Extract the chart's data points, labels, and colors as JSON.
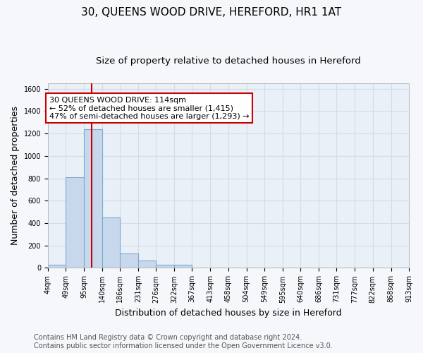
{
  "title": "30, QUEENS WOOD DRIVE, HEREFORD, HR1 1AT",
  "subtitle": "Size of property relative to detached houses in Hereford",
  "xlabel": "Distribution of detached houses by size in Hereford",
  "ylabel": "Number of detached properties",
  "bar_color": "#c8d8ec",
  "bar_edge_color": "#7aaad0",
  "bin_edges": [
    4,
    49,
    95,
    140,
    186,
    231,
    276,
    322,
    367,
    413,
    458,
    504,
    549,
    595,
    640,
    686,
    731,
    777,
    822,
    868,
    913
  ],
  "bin_labels": [
    "4sqm",
    "49sqm",
    "95sqm",
    "140sqm",
    "186sqm",
    "231sqm",
    "276sqm",
    "322sqm",
    "367sqm",
    "413sqm",
    "458sqm",
    "504sqm",
    "549sqm",
    "595sqm",
    "640sqm",
    "686sqm",
    "731sqm",
    "777sqm",
    "822sqm",
    "868sqm",
    "913sqm"
  ],
  "counts": [
    25,
    810,
    1240,
    450,
    130,
    65,
    25,
    25,
    0,
    0,
    0,
    0,
    0,
    0,
    0,
    0,
    0,
    0,
    0,
    0
  ],
  "property_size": 114,
  "vline_color": "#cc0000",
  "ylim": [
    0,
    1650
  ],
  "yticks": [
    0,
    200,
    400,
    600,
    800,
    1000,
    1200,
    1400,
    1600
  ],
  "annotation_line1": "30 QUEENS WOOD DRIVE: 114sqm",
  "annotation_line2": "← 52% of detached houses are smaller (1,415)",
  "annotation_line3": "47% of semi-detached houses are larger (1,293) →",
  "annotation_box_color": "#ffffff",
  "annotation_border_color": "#cc0000",
  "footer_line1": "Contains HM Land Registry data © Crown copyright and database right 2024.",
  "footer_line2": "Contains public sector information licensed under the Open Government Licence v3.0.",
  "bg_color": "#eaf0f8",
  "grid_color": "#d4dce8",
  "fig_bg_color": "#f5f7fb",
  "title_fontsize": 11,
  "subtitle_fontsize": 9.5,
  "axis_label_fontsize": 9,
  "tick_fontsize": 7,
  "footer_fontsize": 7,
  "ann_fontsize": 8
}
